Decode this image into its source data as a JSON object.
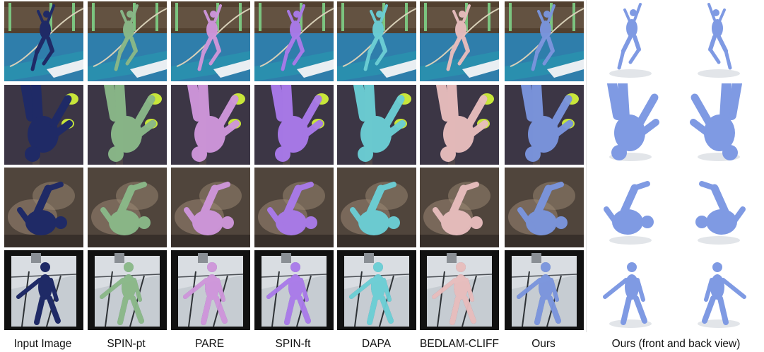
{
  "figure": {
    "columns": [
      {
        "label": "Input Image",
        "mesh": "none"
      },
      {
        "label": "SPIN-pt",
        "mesh": "green"
      },
      {
        "label": "PARE",
        "mesh": "pink-purple"
      },
      {
        "label": "SPIN-ft",
        "mesh": "violet"
      },
      {
        "label": "DAPA",
        "mesh": "cyan"
      },
      {
        "label": "BEDLAM-CLIFF",
        "mesh": "skin-pink"
      },
      {
        "label": "Ours",
        "mesh": "blue"
      }
    ],
    "views_label": "Ours (front and back view)",
    "rows": [
      {
        "scene": "pole-vault-jump"
      },
      {
        "scene": "pole-vault-inverted-closeup"
      },
      {
        "scene": "blurred-tumble"
      },
      {
        "scene": "ski-slalom"
      }
    ],
    "colors": {
      "green": "#8fbf8a",
      "pink-purple": "#d79be0",
      "violet": "#b07ef0",
      "cyan": "#6fd6da",
      "skin-pink": "#f1c4c1",
      "blue": "#7f9ae3"
    }
  }
}
